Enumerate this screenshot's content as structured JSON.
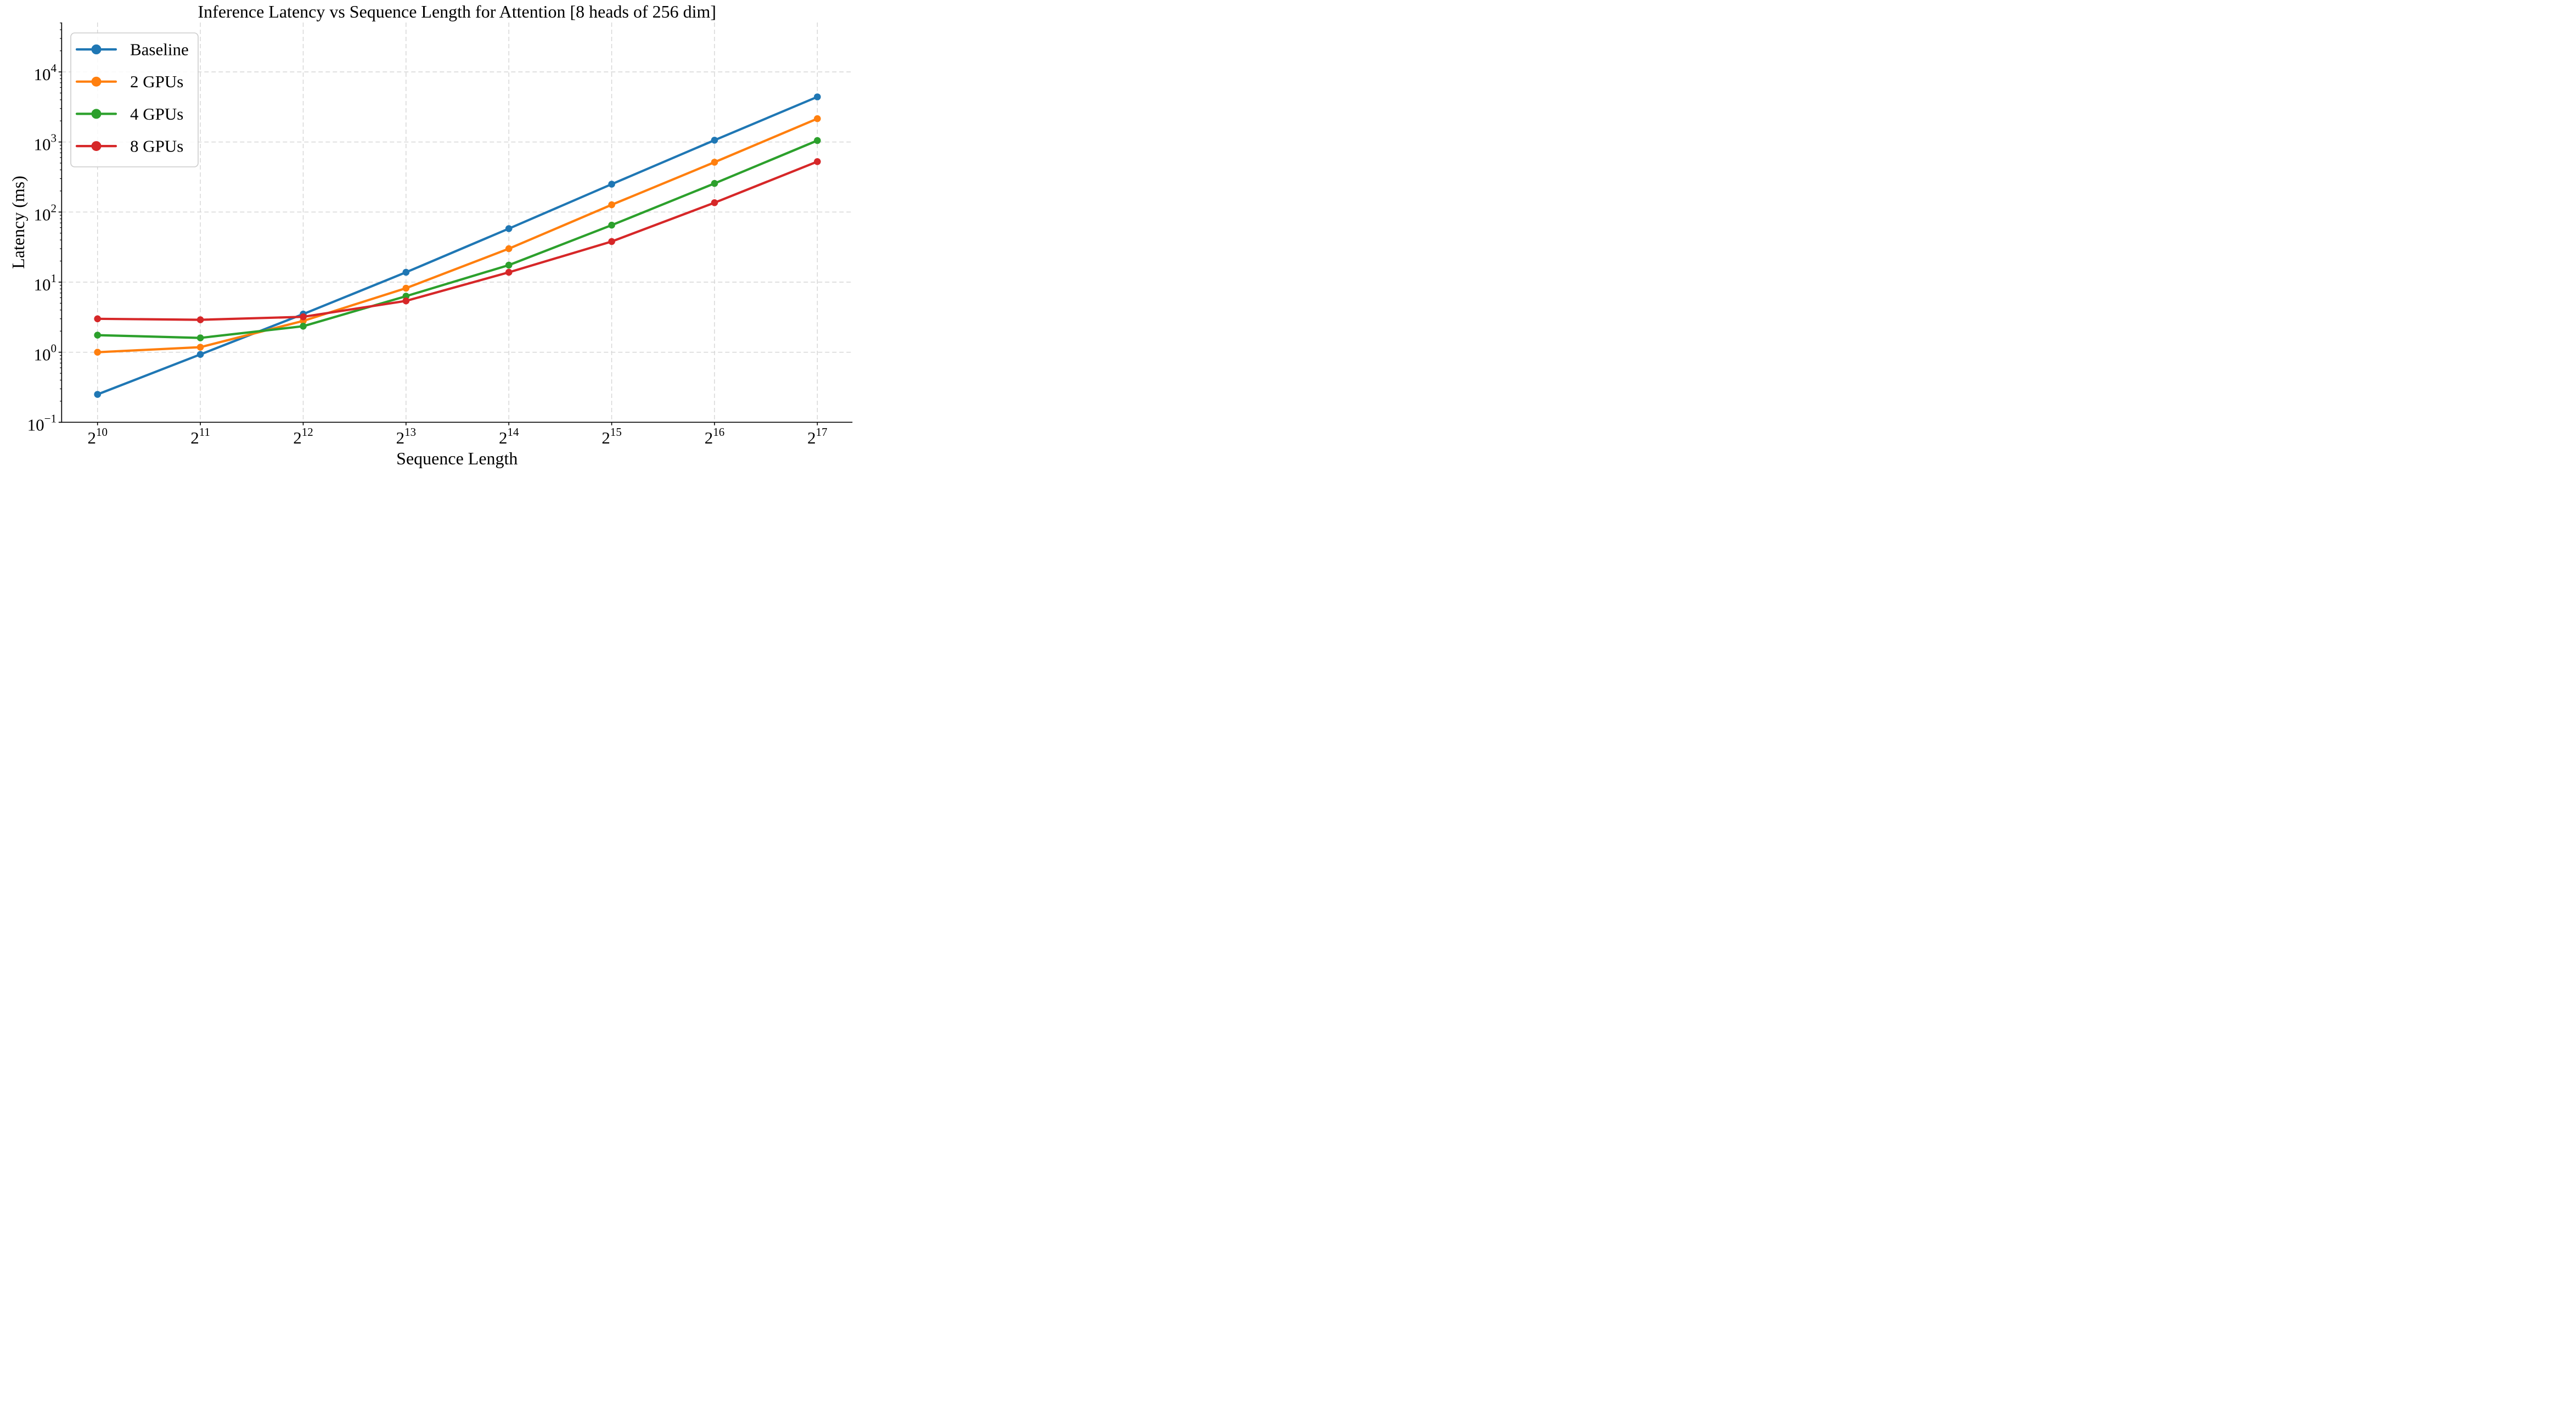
{
  "chart_data": {
    "type": "line",
    "title": "Inference Latency vs Sequence Length for Attention [8 heads of 256 dim]",
    "xlabel": "Sequence Length",
    "ylabel": "Latency (ms)",
    "x_axis": {
      "scale": "log2",
      "tick_base": "2",
      "tick_exponents": [
        10,
        11,
        12,
        13,
        14,
        15,
        16,
        17
      ],
      "values": [
        1024,
        2048,
        4096,
        8192,
        16384,
        32768,
        65536,
        131072
      ]
    },
    "y_axis": {
      "scale": "log10",
      "tick_base": "10",
      "tick_exponents": [
        4,
        3,
        2,
        1,
        0,
        -1
      ],
      "ylim": [
        0.1,
        50000
      ]
    },
    "grid": "dashed-major",
    "legend_position": "upper-left",
    "colors": {
      "baseline": "#1f77b4",
      "gpus2": "#ff7f0e",
      "gpus4": "#2ca02c",
      "gpus8": "#d62728",
      "grid": "#d5d5d5",
      "spine": "#000000",
      "legend_border": "#cccccc"
    },
    "series": [
      {
        "name": "Baseline",
        "color": "#1f77b4",
        "values": [
          0.25,
          0.93,
          3.5,
          13.8,
          58,
          250,
          1060,
          4400
        ]
      },
      {
        "name": "2 GPUs",
        "color": "#ff7f0e",
        "values": [
          1.0,
          1.18,
          2.8,
          8.2,
          30,
          127,
          515,
          2150
        ]
      },
      {
        "name": "4 GPUs",
        "color": "#2ca02c",
        "values": [
          1.75,
          1.6,
          2.35,
          6.3,
          17.5,
          65,
          256,
          1050
        ]
      },
      {
        "name": "8 GPUs",
        "color": "#d62728",
        "values": [
          3.0,
          2.9,
          3.2,
          5.4,
          13.8,
          38,
          136,
          525
        ]
      }
    ]
  }
}
